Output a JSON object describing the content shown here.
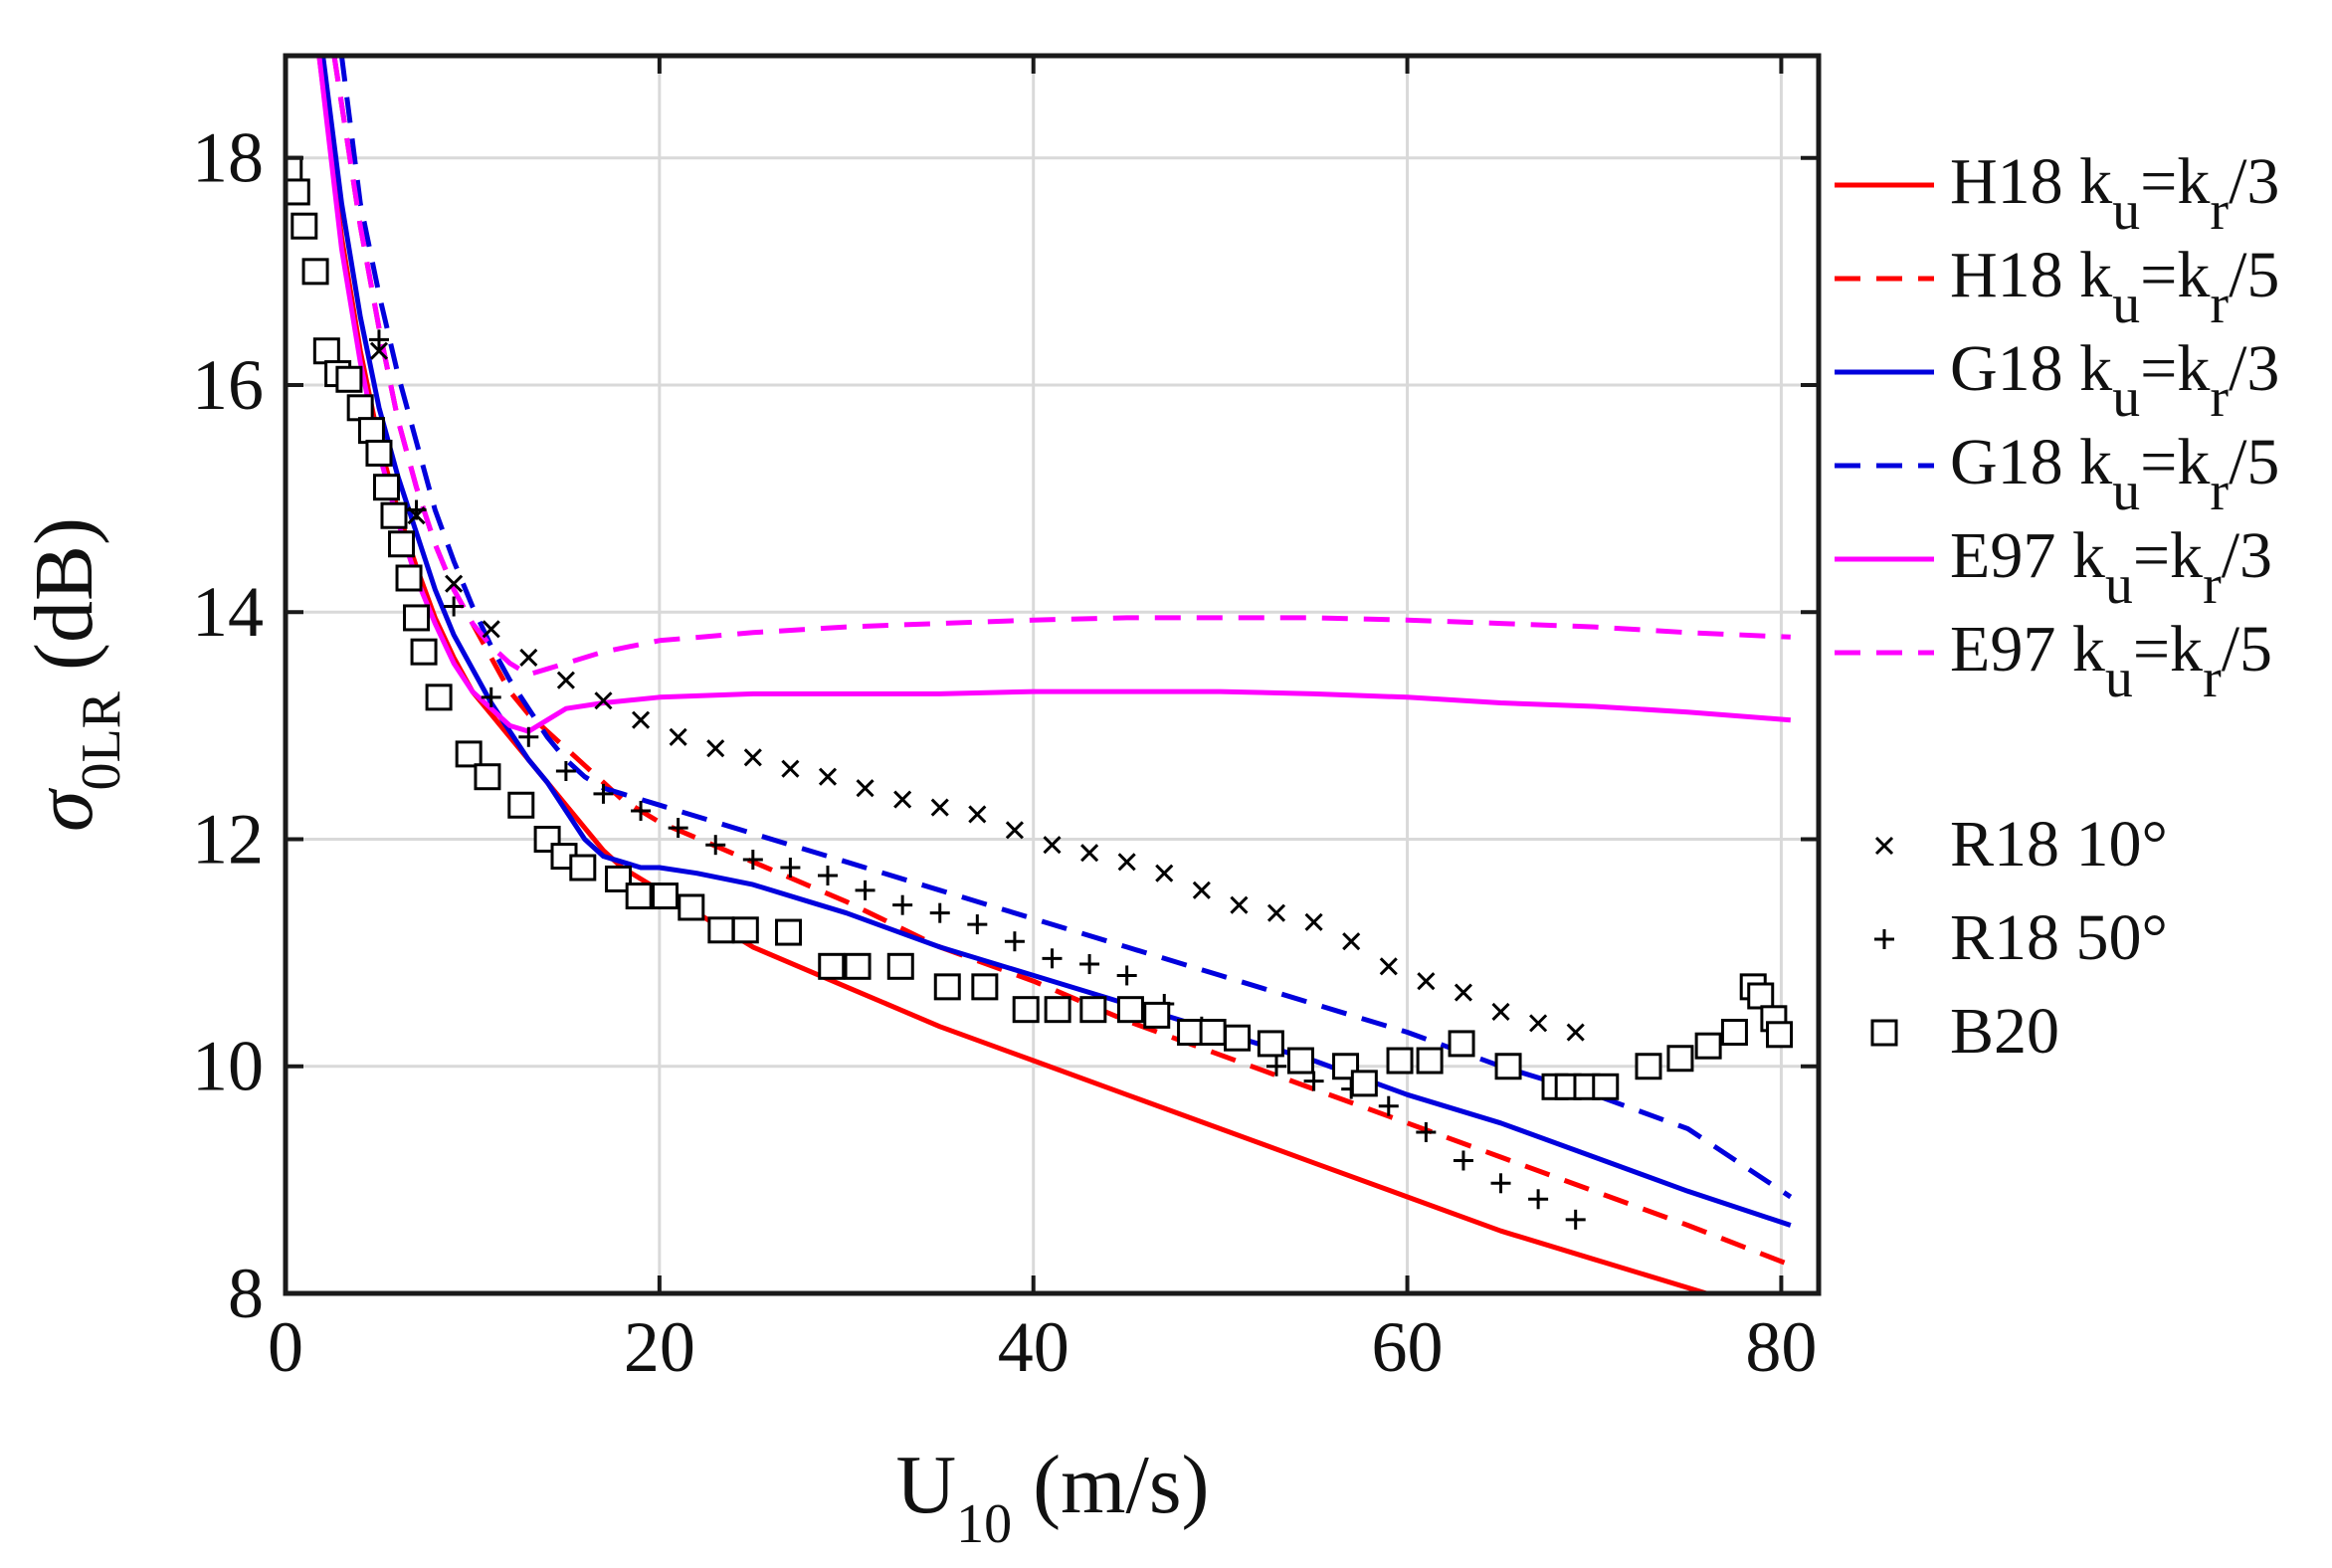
{
  "chart_data": {
    "type": "line",
    "title": "",
    "xlabel": {
      "main": "U",
      "subscript": "10",
      "suffix": " (m/s)"
    },
    "ylabel": {
      "main": "σ",
      "subscript": "0LR",
      "suffix": " (dB)"
    },
    "xlim": [
      0,
      82
    ],
    "ylim": [
      8,
      18.9
    ],
    "xticks": [
      0,
      20,
      40,
      60,
      80
    ],
    "yticks": [
      8,
      10,
      12,
      14,
      16,
      18
    ],
    "xtick_labels": [
      "0",
      "20",
      "40",
      "60",
      "80"
    ],
    "ytick_labels": [
      "8",
      "10",
      "12",
      "14",
      "16",
      "18"
    ],
    "grid": true,
    "legend_position": "outside-right",
    "series": [
      {
        "name": "H18 ku=kr/3",
        "label_parts": [
          "H18 k",
          "u",
          "=k",
          "r",
          "/3"
        ],
        "style": "solid",
        "color": "#ff0000",
        "x": [
          1.8,
          3,
          4,
          5,
          6,
          7,
          8,
          9,
          10,
          11,
          12,
          13,
          14,
          15,
          16,
          17,
          18,
          20,
          25,
          30,
          35,
          40,
          45,
          50,
          55,
          60,
          65,
          70,
          77
        ],
        "y": [
          18.9,
          17.3,
          16.3,
          15.5,
          14.9,
          14.4,
          13.95,
          13.6,
          13.3,
          13.1,
          12.9,
          12.7,
          12.5,
          12.3,
          12.1,
          11.9,
          11.75,
          11.55,
          11.05,
          10.7,
          10.35,
          10.05,
          9.75,
          9.45,
          9.15,
          8.85,
          8.55,
          8.3,
          7.95
        ]
      },
      {
        "name": "H18 ku=kr/5",
        "label_parts": [
          "H18 k",
          "u",
          "=k",
          "r",
          "/5"
        ],
        "style": "dashed",
        "color": "#ff0000",
        "x": [
          2.6,
          4,
          5,
          6,
          7,
          8,
          9,
          10,
          11,
          12,
          13,
          14,
          15,
          16,
          17,
          18,
          19,
          20,
          25,
          30,
          35,
          40,
          45,
          50,
          55,
          60,
          65,
          70,
          75,
          80.5
        ],
        "y": [
          18.9,
          17.4,
          16.5,
          15.7,
          15.1,
          14.6,
          14.2,
          13.9,
          13.6,
          13.3,
          13.1,
          12.95,
          12.8,
          12.65,
          12.5,
          12.35,
          12.25,
          12.15,
          11.8,
          11.45,
          11.05,
          10.75,
          10.4,
          10.1,
          9.8,
          9.5,
          9.2,
          8.9,
          8.6,
          8.25
        ]
      },
      {
        "name": "G18 ku=kr/3",
        "label_parts": [
          "G18 k",
          "u",
          "=k",
          "r",
          "/3"
        ],
        "style": "solid",
        "color": "#0000dd",
        "x": [
          2,
          3,
          4,
          5,
          6,
          7,
          8,
          9,
          10,
          11,
          12,
          13,
          14,
          15,
          16,
          17,
          18,
          19,
          20,
          22,
          25,
          28,
          30,
          35,
          40,
          45,
          50,
          55,
          60,
          65,
          70,
          75,
          80.5
        ],
        "y": [
          18.9,
          17.6,
          16.6,
          15.8,
          15.2,
          14.7,
          14.2,
          13.8,
          13.5,
          13.2,
          12.95,
          12.7,
          12.5,
          12.25,
          12.0,
          11.85,
          11.8,
          11.75,
          11.75,
          11.7,
          11.6,
          11.45,
          11.35,
          11.05,
          10.8,
          10.55,
          10.3,
          10.05,
          9.75,
          9.5,
          9.2,
          8.9,
          8.6
        ]
      },
      {
        "name": "G18 ku=kr/5",
        "label_parts": [
          "G18 k",
          "u",
          "=k",
          "r",
          "/5"
        ],
        "style": "dashed",
        "color": "#0000dd",
        "x": [
          3,
          4,
          5,
          6,
          7,
          8,
          9,
          10,
          11,
          12,
          13,
          14,
          15,
          16,
          17,
          18,
          19,
          20,
          25,
          30,
          35,
          40,
          45,
          50,
          55,
          60,
          65,
          70,
          75,
          80.5
        ],
        "y": [
          18.9,
          17.6,
          16.8,
          16.1,
          15.5,
          14.9,
          14.45,
          14.05,
          13.7,
          13.4,
          13.15,
          12.9,
          12.7,
          12.55,
          12.45,
          12.4,
          12.35,
          12.3,
          12.05,
          11.8,
          11.55,
          11.3,
          11.05,
          10.8,
          10.55,
          10.3,
          10.0,
          9.75,
          9.45,
          8.85
        ]
      },
      {
        "name": "E97 ku=kr/3",
        "label_parts": [
          "E97 k",
          "u",
          "=k",
          "r",
          "/3"
        ],
        "style": "solid",
        "color": "#ff00ff",
        "x": [
          1.8,
          3,
          4,
          5,
          6,
          7,
          8,
          9,
          10,
          11,
          12,
          13,
          14,
          15,
          17,
          20,
          25,
          30,
          35,
          40,
          45,
          50,
          55,
          60,
          65,
          70,
          75,
          80.5
        ],
        "y": [
          18.9,
          17.2,
          16.2,
          15.4,
          14.8,
          14.3,
          13.9,
          13.55,
          13.3,
          13.15,
          13.0,
          12.95,
          13.05,
          13.15,
          13.2,
          13.25,
          13.28,
          13.28,
          13.28,
          13.3,
          13.3,
          13.3,
          13.28,
          13.25,
          13.2,
          13.17,
          13.12,
          13.05
        ]
      },
      {
        "name": "E97 ku=kr/5",
        "label_parts": [
          "E97 k",
          "u",
          "=k",
          "r",
          "/5"
        ],
        "style": "dashed",
        "color": "#ff00ff",
        "x": [
          2.6,
          4,
          5,
          6,
          7,
          8,
          9,
          10,
          11,
          12,
          13,
          14,
          15,
          17,
          20,
          25,
          30,
          35,
          40,
          45,
          50,
          55,
          60,
          65,
          70,
          75,
          80.5
        ],
        "y": [
          18.9,
          17.4,
          16.5,
          15.7,
          15.1,
          14.6,
          14.2,
          13.9,
          13.7,
          13.55,
          13.45,
          13.5,
          13.55,
          13.65,
          13.75,
          13.82,
          13.87,
          13.9,
          13.93,
          13.95,
          13.95,
          13.95,
          13.93,
          13.9,
          13.87,
          13.82,
          13.78
        ]
      }
    ],
    "scatter_series": [
      {
        "name": "R18 10°",
        "marker": "x",
        "color": "#000000",
        "x": [
          5,
          7,
          9,
          11,
          13,
          15,
          17,
          19,
          21,
          23,
          25,
          27,
          29,
          31,
          33,
          35,
          37,
          39,
          41,
          43,
          45,
          47,
          49,
          51,
          53,
          55,
          57,
          59,
          61,
          63,
          65,
          67,
          69
        ],
        "y": [
          16.3,
          14.85,
          14.25,
          13.85,
          13.6,
          13.4,
          13.22,
          13.05,
          12.9,
          12.8,
          12.72,
          12.62,
          12.55,
          12.45,
          12.35,
          12.28,
          12.22,
          12.08,
          11.95,
          11.88,
          11.8,
          11.7,
          11.55,
          11.42,
          11.35,
          11.27,
          11.1,
          10.88,
          10.75,
          10.65,
          10.48,
          10.38,
          10.3
        ]
      },
      {
        "name": "R18 50°",
        "marker": "+",
        "color": "#000000",
        "x": [
          5,
          7,
          9,
          11,
          13,
          15,
          17,
          19,
          21,
          23,
          25,
          27,
          29,
          31,
          33,
          35,
          37,
          39,
          41,
          43,
          45,
          47,
          49,
          51,
          53,
          55,
          57,
          59,
          61,
          63,
          65,
          67,
          69
        ],
        "y": [
          16.4,
          14.9,
          14.05,
          13.25,
          12.9,
          12.6,
          12.4,
          12.25,
          12.1,
          11.95,
          11.82,
          11.75,
          11.68,
          11.55,
          11.42,
          11.35,
          11.25,
          11.1,
          10.95,
          10.9,
          10.8,
          10.55,
          10.35,
          10.25,
          10.0,
          9.87,
          9.8,
          9.65,
          9.42,
          9.17,
          8.97,
          8.83,
          8.65
        ]
      },
      {
        "name": "B20",
        "marker": "square",
        "color": "#000000",
        "x": [
          0.2,
          0.6,
          1.0,
          1.6,
          2.2,
          2.8,
          3.4,
          4.0,
          4.6,
          5.0,
          5.4,
          5.8,
          6.2,
          6.6,
          7.0,
          7.4,
          8.2,
          9.8,
          10.8,
          12.6,
          14.0,
          14.9,
          15.9,
          17.8,
          18.9,
          20.3,
          21.7,
          23.3,
          24.6,
          26.9,
          29.2,
          30.6,
          32.9,
          35.4,
          37.4,
          39.6,
          41.3,
          43.2,
          45.2,
          46.6,
          48.4,
          49.6,
          50.9,
          52.7,
          54.3,
          56.7,
          57.7,
          59.6,
          61.2,
          62.9,
          65.4,
          67.9,
          68.6,
          69.6,
          70.6,
          72.9,
          74.6,
          76.1,
          77.5,
          78.5,
          78.9,
          79.6,
          79.9
        ],
        "y": [
          17.9,
          17.7,
          17.4,
          17.0,
          16.3,
          16.1,
          16.05,
          15.8,
          15.6,
          15.4,
          15.1,
          14.85,
          14.6,
          14.3,
          13.95,
          13.65,
          13.25,
          12.75,
          12.55,
          12.3,
          12.0,
          11.85,
          11.75,
          11.65,
          11.5,
          11.5,
          11.4,
          11.2,
          11.2,
          11.18,
          10.88,
          10.88,
          10.88,
          10.7,
          10.7,
          10.5,
          10.5,
          10.5,
          10.5,
          10.45,
          10.3,
          10.3,
          10.25,
          10.2,
          10.05,
          10.0,
          9.85,
          10.05,
          10.05,
          10.2,
          10.0,
          9.82,
          9.82,
          9.82,
          9.82,
          10.0,
          10.07,
          10.18,
          10.3,
          10.7,
          10.62,
          10.42,
          10.28
        ]
      }
    ]
  }
}
